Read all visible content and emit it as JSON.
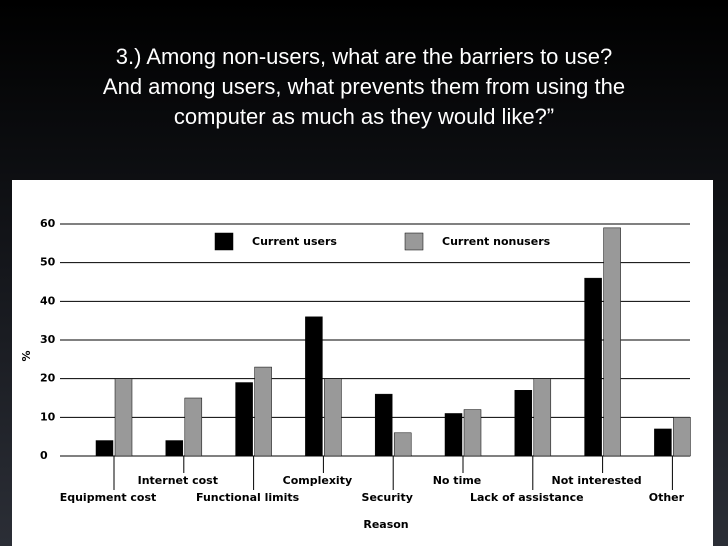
{
  "slide": {
    "title": [
      "3.) Among non-users, what are the barriers to use?",
      "And among users, what prevents them from using the",
      "computer as much as they would like?”"
    ]
  },
  "chart_data": {
    "type": "bar",
    "x_label": "Reason",
    "y_label": "%",
    "categories": [
      "Equipment cost",
      "Internet cost",
      "Functional limits",
      "Complexity",
      "Security",
      "No time",
      "Lack of assistance",
      "Not interested",
      "Other"
    ],
    "series": [
      {
        "name": "Current users",
        "color": "#000000",
        "values": [
          4,
          4,
          19,
          36,
          16,
          11,
          17,
          46,
          7
        ]
      },
      {
        "name": "Current nonusers",
        "color": "#999999",
        "values": [
          20,
          15,
          23,
          20,
          6,
          12,
          20,
          59,
          10
        ]
      }
    ],
    "ylim": [
      0,
      60
    ],
    "yticks": [
      0,
      10,
      20,
      30,
      40,
      50,
      60
    ],
    "grid": true
  }
}
